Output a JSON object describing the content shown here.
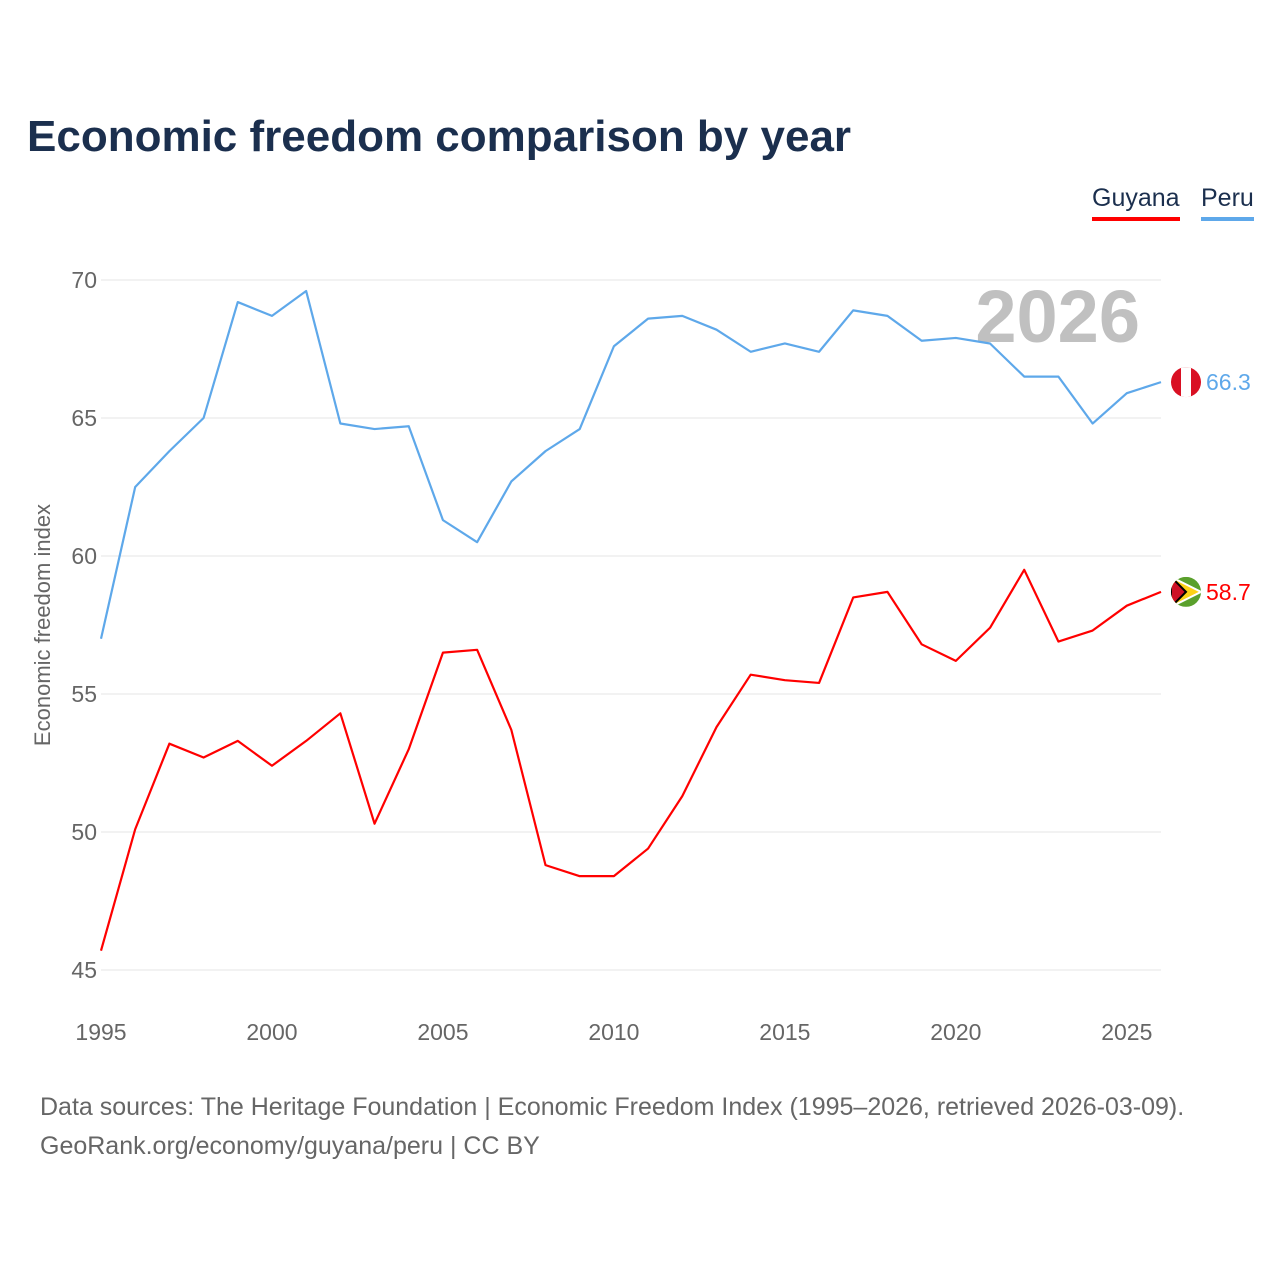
{
  "title": "Economic freedom comparison by year",
  "source_line1": "Data sources: The Heritage Foundation | Economic Freedom Index (1995–2026, retrieved 2026-03-09).",
  "source_line2": "GeoRank.org/economy/guyana/peru | CC BY",
  "chart_data": {
    "type": "line",
    "title": "Economic freedom comparison by year",
    "xlabel": "",
    "ylabel": "Economic freedom index",
    "xlim": [
      1995,
      2026
    ],
    "ylim": [
      45,
      70
    ],
    "xticks": [
      1995,
      2000,
      2005,
      2010,
      2015,
      2020,
      2025
    ],
    "yticks": [
      45,
      50,
      55,
      60,
      65,
      70
    ],
    "grid": true,
    "legend_placement": "top-right",
    "watermark_year": "2026",
    "x": [
      1995,
      1996,
      1997,
      1998,
      1999,
      2000,
      2001,
      2002,
      2003,
      2004,
      2005,
      2006,
      2007,
      2008,
      2009,
      2010,
      2011,
      2012,
      2013,
      2014,
      2015,
      2016,
      2017,
      2018,
      2019,
      2020,
      2021,
      2022,
      2023,
      2024,
      2025,
      2026
    ],
    "series": [
      {
        "name": "Guyana",
        "color": "#ff0000",
        "end_label": "58.7",
        "values": [
          45.7,
          50.1,
          53.2,
          52.7,
          53.3,
          52.4,
          53.3,
          54.3,
          50.3,
          53.0,
          56.5,
          56.6,
          53.7,
          48.8,
          48.4,
          48.4,
          49.4,
          51.3,
          53.8,
          55.7,
          55.5,
          55.4,
          58.5,
          58.7,
          56.8,
          56.2,
          57.4,
          59.5,
          56.9,
          57.3,
          58.2,
          58.7
        ]
      },
      {
        "name": "Peru",
        "color": "#5ea8ea",
        "end_label": "66.3",
        "values": [
          57.0,
          62.5,
          63.8,
          65.0,
          69.2,
          68.7,
          69.6,
          64.8,
          64.6,
          64.7,
          61.3,
          60.5,
          62.7,
          63.8,
          64.6,
          67.6,
          68.6,
          68.7,
          68.2,
          67.4,
          67.7,
          67.4,
          68.9,
          68.7,
          67.8,
          67.9,
          67.7,
          66.5,
          66.5,
          64.8,
          65.9,
          66.3
        ]
      }
    ]
  }
}
